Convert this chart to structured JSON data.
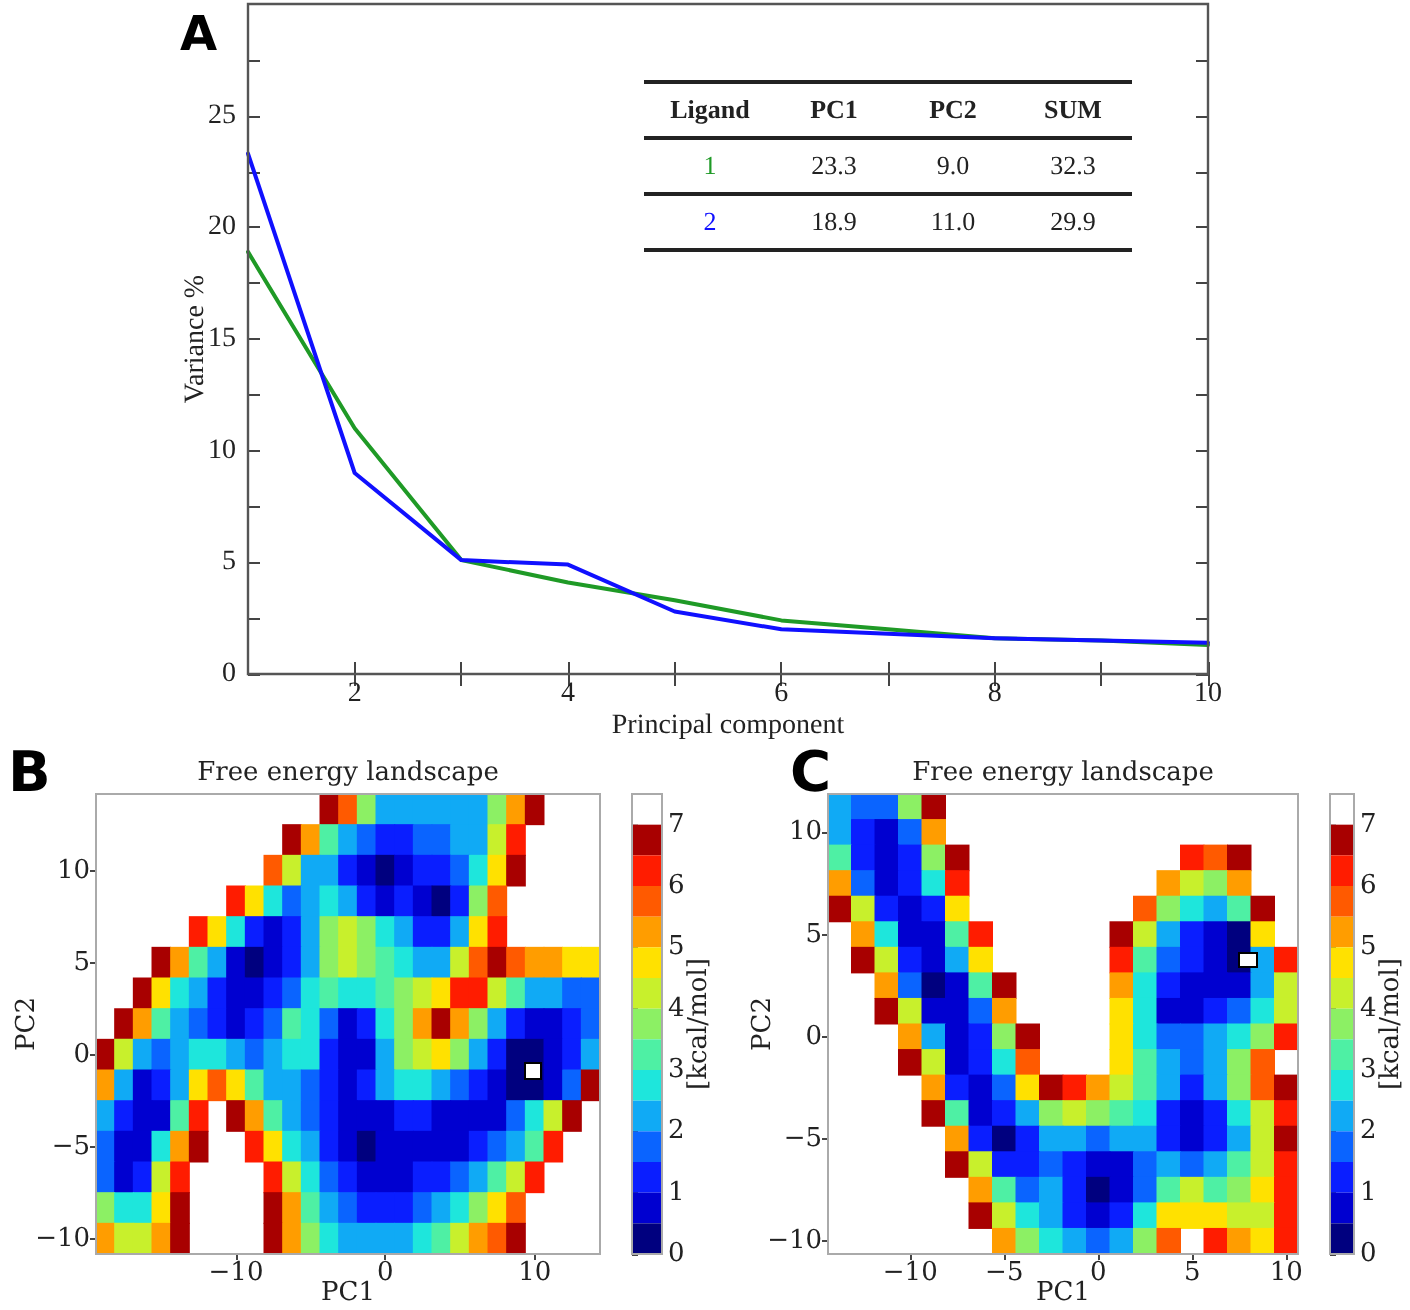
{
  "chart_data": [
    {
      "type": "line",
      "annotations": [
        "A",
        "Ligand",
        "PC1",
        "PC2",
        "SUM",
        "1",
        "23.3",
        "9.0",
        "32.3",
        "2",
        "18.9",
        "11.0",
        "29.9"
      ],
      "xlabel": "Principal component",
      "ylabel": "Variance %",
      "x": [
        1,
        2,
        3,
        4,
        5,
        6,
        7,
        8,
        9,
        10
      ],
      "series": [
        {
          "color": "#1f9a26",
          "values": [
            18.9,
            11.0,
            5.1,
            4.1,
            3.3,
            2.4,
            2.0,
            1.6,
            1.5,
            1.3
          ]
        },
        {
          "color": "#1010ff",
          "values": [
            23.3,
            9.0,
            5.1,
            4.9,
            2.8,
            2.0,
            1.8,
            1.6,
            1.5,
            1.4
          ]
        }
      ],
      "xlim": [
        1,
        10
      ],
      "xticks": [
        2,
        {
          "value": 3,
          "label": null
        },
        4,
        {
          "value": 5,
          "label": null
        },
        6,
        {
          "value": 7,
          "label": null
        },
        8,
        {
          "value": 9,
          "label": null
        },
        10
      ],
      "ylim": [
        0,
        30
      ],
      "yticks": [
        0,
        {
          "value": 2.5,
          "label": null
        },
        5,
        {
          "value": 7.5,
          "label": null
        },
        10,
        {
          "value": 12.5,
          "label": null
        },
        15,
        {
          "value": 17.5,
          "label": null
        },
        20,
        {
          "value": 22.5,
          "label": null
        },
        25,
        {
          "value": 27.5,
          "label": null
        }
      ]
    },
    {
      "type": "heatmap",
      "title": "Free energy landscape",
      "annotations": [
        "B"
      ],
      "xlabel": "PC1",
      "ylabel": "PC2",
      "clabel": "[kcal/mol]",
      "categories": [
        null,
        null,
        null,
        null,
        null,
        null,
        null,
        "−10",
        null,
        null,
        null,
        null,
        null,
        null,
        null,
        "0",
        null,
        null,
        null,
        null,
        null,
        null,
        null,
        "10",
        null,
        null,
        null
      ],
      "y_categories": [
        null,
        null,
        "10",
        null,
        null,
        "5",
        null,
        null,
        "0",
        null,
        null,
        "−5",
        null,
        null,
        "−10"
      ],
      "cells": [
        [
          null,
          null,
          null,
          null,
          null,
          null,
          null,
          null,
          null,
          null,
          null,
          null,
          6.8,
          5.8,
          3.8,
          2.3,
          2.3,
          2.3,
          2.3,
          2.3,
          2.3,
          3.8,
          5.3,
          6.8,
          null,
          null,
          null
        ],
        [
          null,
          null,
          null,
          null,
          null,
          null,
          null,
          null,
          null,
          null,
          6.8,
          5.3,
          3.3,
          2.3,
          1.8,
          1.3,
          1.3,
          1.8,
          1.8,
          2.3,
          2.3,
          4.3,
          6.3,
          null,
          null,
          null,
          null
        ],
        [
          null,
          null,
          null,
          null,
          null,
          null,
          null,
          null,
          null,
          5.8,
          4.3,
          2.3,
          2.3,
          1.3,
          0.8,
          0.3,
          0.8,
          1.3,
          1.3,
          1.8,
          2.8,
          4.8,
          6.8,
          null,
          null,
          null,
          null
        ],
        [
          null,
          null,
          null,
          null,
          null,
          null,
          null,
          6.3,
          4.8,
          2.8,
          1.8,
          2.3,
          2.8,
          2.3,
          1.3,
          0.8,
          1.3,
          0.8,
          0.3,
          1.3,
          3.8,
          5.8,
          null,
          null,
          null,
          null,
          null
        ],
        [
          null,
          null,
          null,
          null,
          null,
          6.3,
          4.8,
          2.8,
          1.3,
          0.8,
          1.3,
          2.3,
          3.8,
          4.3,
          3.8,
          2.8,
          2.3,
          1.3,
          1.3,
          2.3,
          4.8,
          6.3,
          null,
          null,
          null,
          null,
          null
        ],
        [
          null,
          null,
          null,
          6.8,
          5.3,
          3.3,
          2.3,
          0.8,
          0.3,
          0.8,
          1.3,
          2.3,
          3.8,
          4.3,
          3.8,
          3.3,
          2.8,
          2.3,
          2.3,
          4.3,
          5.8,
          6.8,
          5.8,
          5.3,
          5.3,
          4.8,
          4.8
        ],
        [
          null,
          null,
          6.8,
          4.8,
          2.8,
          2.3,
          1.3,
          0.8,
          0.8,
          1.3,
          1.8,
          2.8,
          3.3,
          2.8,
          2.8,
          3.3,
          3.8,
          4.3,
          4.8,
          6.3,
          6.3,
          4.3,
          3.3,
          2.3,
          2.3,
          1.8,
          1.8
        ],
        [
          null,
          6.8,
          5.3,
          3.3,
          2.3,
          1.8,
          1.3,
          0.8,
          1.3,
          1.8,
          3.3,
          2.8,
          1.8,
          0.8,
          1.3,
          2.8,
          3.8,
          5.3,
          6.8,
          5.3,
          3.8,
          2.3,
          1.3,
          0.8,
          0.8,
          1.3,
          1.8
        ],
        [
          6.8,
          4.3,
          2.3,
          1.8,
          2.3,
          2.8,
          2.8,
          2.3,
          1.8,
          2.3,
          2.8,
          2.8,
          1.3,
          0.8,
          0.8,
          2.3,
          3.8,
          4.3,
          4.8,
          3.8,
          2.3,
          1.3,
          0.3,
          0.3,
          0.8,
          1.3,
          2.3
        ],
        [
          5.3,
          2.3,
          0.8,
          1.3,
          2.3,
          4.8,
          5.8,
          4.8,
          3.3,
          2.3,
          2.3,
          1.8,
          1.3,
          0.8,
          1.3,
          2.3,
          2.8,
          2.8,
          2.3,
          1.8,
          1.3,
          0.8,
          0.3,
          0.3,
          0.8,
          1.8,
          6.8
        ],
        [
          2.3,
          1.3,
          0.8,
          0.8,
          3.3,
          6.3,
          null,
          6.8,
          5.3,
          3.3,
          2.3,
          1.8,
          1.3,
          0.8,
          0.8,
          0.8,
          1.3,
          1.3,
          0.8,
          0.8,
          0.8,
          0.8,
          1.8,
          2.8,
          4.3,
          6.8,
          null
        ],
        [
          1.8,
          0.8,
          0.8,
          2.8,
          5.3,
          6.8,
          null,
          null,
          6.3,
          4.8,
          2.8,
          2.3,
          1.3,
          0.8,
          0.3,
          0.8,
          0.8,
          0.8,
          0.8,
          0.8,
          1.3,
          1.8,
          2.3,
          3.3,
          6.3,
          null,
          null
        ],
        [
          1.8,
          0.8,
          1.3,
          4.3,
          6.3,
          null,
          null,
          null,
          null,
          6.3,
          4.3,
          2.8,
          1.8,
          1.3,
          0.8,
          0.8,
          0.8,
          1.3,
          1.3,
          1.8,
          2.3,
          3.3,
          4.3,
          6.3,
          null,
          null,
          null
        ],
        [
          3.8,
          2.8,
          2.8,
          4.8,
          6.8,
          null,
          null,
          null,
          null,
          6.8,
          5.3,
          3.3,
          2.3,
          1.8,
          1.3,
          1.3,
          1.3,
          1.8,
          2.3,
          2.8,
          3.8,
          4.8,
          5.8,
          null,
          null,
          null,
          null
        ],
        [
          5.3,
          4.3,
          4.3,
          5.3,
          6.8,
          null,
          null,
          null,
          null,
          6.8,
          5.3,
          3.8,
          2.8,
          2.3,
          2.3,
          2.3,
          2.3,
          2.8,
          3.3,
          4.3,
          5.3,
          5.8,
          6.8,
          null,
          null,
          null,
          null
        ]
      ],
      "colors": [
        "#00007f",
        "#0000d0",
        "#0a1eff",
        "#0a64ff",
        "#10aaf5",
        "#1ee6dc",
        "#4ef0a4",
        "#8cf064",
        "#c8f02c",
        "#ffe100",
        "#ff9d00",
        "#ff5a00",
        "#ff1c00",
        "#a80000",
        "#ffffff"
      ],
      "clim": [
        0,
        7.5
      ],
      "cticks": [
        0,
        1,
        2,
        3,
        4,
        5,
        6,
        7
      ]
    },
    {
      "type": "heatmap",
      "title": "Free energy landscape",
      "annotations": [
        "C"
      ],
      "xlabel": "PC1",
      "ylabel": "PC2",
      "clabel": "[kcal/mol]",
      "categories": [
        null,
        null,
        null,
        "−10",
        null,
        null,
        null,
        "−5",
        null,
        null,
        null,
        "0",
        null,
        null,
        null,
        "5",
        null,
        null,
        null,
        "10"
      ],
      "y_categories": [
        null,
        "10",
        null,
        null,
        null,
        "5",
        null,
        null,
        null,
        "0",
        null,
        null,
        null,
        "−5",
        null,
        null,
        null,
        "−10"
      ],
      "cells": [
        [
          2.3,
          1.8,
          1.8,
          3.8,
          6.8,
          null,
          null,
          null,
          null,
          null,
          null,
          null,
          null,
          null,
          null,
          null,
          null,
          null,
          null,
          null
        ],
        [
          2.3,
          1.3,
          0.8,
          1.8,
          5.3,
          null,
          null,
          null,
          null,
          null,
          null,
          null,
          null,
          null,
          null,
          null,
          null,
          null,
          null,
          null
        ],
        [
          3.3,
          1.3,
          0.8,
          1.3,
          3.8,
          6.8,
          null,
          null,
          null,
          null,
          null,
          null,
          null,
          null,
          null,
          6.3,
          5.8,
          6.8,
          null,
          null
        ],
        [
          5.3,
          1.8,
          0.8,
          1.3,
          2.8,
          6.3,
          null,
          null,
          null,
          null,
          null,
          null,
          null,
          null,
          5.3,
          4.3,
          3.8,
          5.3,
          null,
          null
        ],
        [
          6.8,
          4.3,
          1.3,
          0.8,
          1.3,
          4.8,
          null,
          null,
          null,
          null,
          null,
          null,
          null,
          5.8,
          3.8,
          2.8,
          2.3,
          3.3,
          6.8,
          null
        ],
        [
          null,
          5.3,
          2.8,
          0.8,
          0.8,
          3.3,
          6.3,
          null,
          null,
          null,
          null,
          null,
          6.8,
          4.3,
          2.3,
          1.3,
          0.8,
          0.3,
          4.8,
          null
        ],
        [
          null,
          6.8,
          4.3,
          1.3,
          0.8,
          2.3,
          4.8,
          null,
          null,
          null,
          null,
          null,
          6.3,
          3.3,
          1.8,
          1.3,
          0.8,
          0.3,
          2.3,
          6.3
        ],
        [
          null,
          null,
          5.3,
          1.8,
          0.3,
          0.8,
          3.3,
          6.8,
          null,
          null,
          null,
          null,
          5.3,
          2.8,
          1.3,
          0.8,
          0.8,
          0.8,
          2.3,
          4.3
        ],
        [
          null,
          null,
          6.8,
          4.3,
          0.8,
          0.8,
          1.8,
          5.3,
          null,
          null,
          null,
          null,
          4.8,
          2.8,
          0.8,
          0.8,
          1.3,
          1.8,
          2.8,
          4.3
        ],
        [
          null,
          null,
          null,
          5.3,
          2.3,
          0.8,
          1.3,
          3.8,
          6.8,
          null,
          null,
          null,
          4.8,
          2.8,
          1.8,
          1.8,
          2.3,
          2.8,
          3.8,
          6.3
        ],
        [
          null,
          null,
          null,
          6.8,
          4.3,
          0.8,
          1.3,
          2.8,
          5.8,
          null,
          null,
          null,
          4.8,
          3.3,
          2.3,
          1.8,
          2.3,
          3.8,
          5.8,
          null
        ],
        [
          null,
          null,
          null,
          null,
          5.3,
          1.3,
          0.8,
          1.8,
          4.8,
          6.8,
          6.3,
          5.3,
          4.3,
          3.3,
          2.3,
          1.3,
          2.3,
          3.8,
          5.8,
          6.8
        ],
        [
          null,
          null,
          null,
          null,
          6.8,
          3.3,
          0.8,
          1.3,
          2.3,
          3.8,
          4.3,
          3.8,
          3.3,
          2.8,
          1.3,
          0.8,
          1.3,
          2.8,
          4.3,
          6.3
        ],
        [
          null,
          null,
          null,
          null,
          null,
          5.3,
          1.3,
          0.3,
          1.3,
          2.3,
          2.3,
          1.8,
          2.3,
          2.3,
          1.3,
          0.8,
          1.3,
          2.3,
          4.3,
          6.8
        ],
        [
          null,
          null,
          null,
          null,
          null,
          6.8,
          4.3,
          1.3,
          1.3,
          1.8,
          1.3,
          0.8,
          0.8,
          1.8,
          2.3,
          1.8,
          2.3,
          3.3,
          4.3,
          6.3
        ],
        [
          null,
          null,
          null,
          null,
          null,
          null,
          5.3,
          3.3,
          1.8,
          2.3,
          1.3,
          0.3,
          0.8,
          1.8,
          3.3,
          4.3,
          3.3,
          3.8,
          4.8,
          6.3
        ],
        [
          null,
          null,
          null,
          null,
          null,
          null,
          6.8,
          4.3,
          2.8,
          2.3,
          1.3,
          0.8,
          1.3,
          2.8,
          4.8,
          4.8,
          4.8,
          4.3,
          4.3,
          6.3
        ],
        [
          null,
          null,
          null,
          null,
          null,
          null,
          null,
          5.3,
          3.8,
          2.8,
          2.3,
          1.8,
          2.3,
          3.8,
          5.8,
          null,
          6.3,
          5.3,
          4.8,
          6.3
        ]
      ],
      "colors": [
        "#00007f",
        "#0000d0",
        "#0a1eff",
        "#0a64ff",
        "#10aaf5",
        "#1ee6dc",
        "#4ef0a4",
        "#8cf064",
        "#c8f02c",
        "#ffe100",
        "#ff9d00",
        "#ff5a00",
        "#ff1c00",
        "#a80000",
        "#ffffff"
      ],
      "clim": [
        0,
        7.5
      ],
      "cticks": [
        0,
        1,
        2,
        3,
        4,
        5,
        6,
        7
      ]
    }
  ]
}
